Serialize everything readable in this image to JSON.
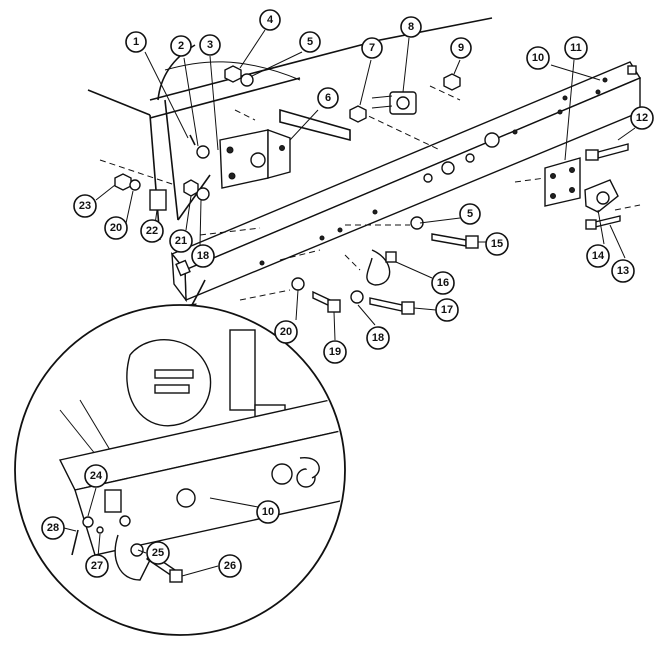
{
  "callouts": [
    {
      "id": "c1",
      "label": "1"
    },
    {
      "id": "c2",
      "label": "2"
    },
    {
      "id": "c3",
      "label": "3"
    },
    {
      "id": "c4",
      "label": "4"
    },
    {
      "id": "c5a",
      "label": "5"
    },
    {
      "id": "c6",
      "label": "6"
    },
    {
      "id": "c7",
      "label": "7"
    },
    {
      "id": "c8",
      "label": "8"
    },
    {
      "id": "c9",
      "label": "9"
    },
    {
      "id": "c10a",
      "label": "10"
    },
    {
      "id": "c11",
      "label": "11"
    },
    {
      "id": "c12",
      "label": "12"
    },
    {
      "id": "c13",
      "label": "13"
    },
    {
      "id": "c14",
      "label": "14"
    },
    {
      "id": "c5b",
      "label": "5"
    },
    {
      "id": "c15",
      "label": "15"
    },
    {
      "id": "c16",
      "label": "16"
    },
    {
      "id": "c17",
      "label": "17"
    },
    {
      "id": "c18a",
      "label": "18"
    },
    {
      "id": "c19",
      "label": "19"
    },
    {
      "id": "c20a",
      "label": "20"
    },
    {
      "id": "c18b",
      "label": "18"
    },
    {
      "id": "c20b",
      "label": "20"
    },
    {
      "id": "c21",
      "label": "21"
    },
    {
      "id": "c22",
      "label": "22"
    },
    {
      "id": "c23",
      "label": "23"
    },
    {
      "id": "c24",
      "label": "24"
    },
    {
      "id": "c10b",
      "label": "10"
    },
    {
      "id": "c25",
      "label": "25"
    },
    {
      "id": "c26",
      "label": "26"
    },
    {
      "id": "c27",
      "label": "27"
    },
    {
      "id": "c28",
      "label": "28"
    }
  ]
}
